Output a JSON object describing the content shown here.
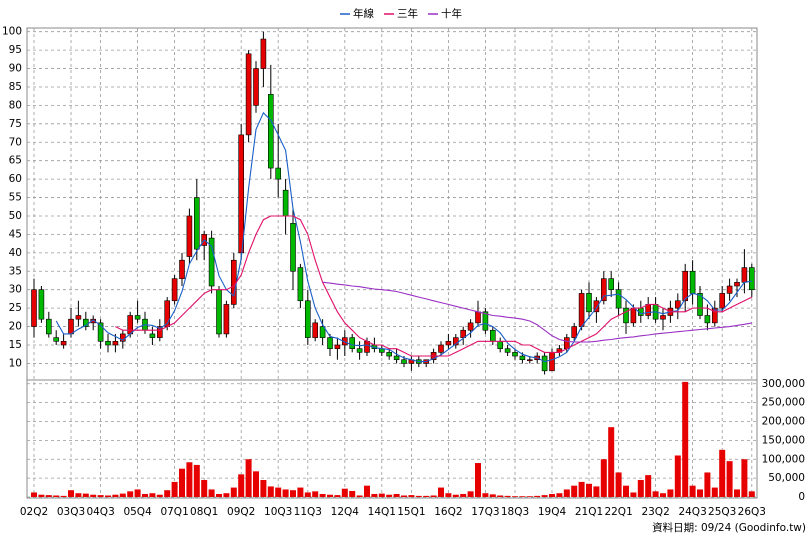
{
  "chart_data": {
    "type": "candlestick",
    "categories": [
      "02Q2",
      null,
      null,
      null,
      null,
      "03Q3",
      null,
      null,
      null,
      "04Q3",
      null,
      null,
      null,
      null,
      "05Q4",
      null,
      null,
      null,
      null,
      "07Q1",
      null,
      null,
      null,
      "08Q1",
      null,
      null,
      null,
      null,
      "09Q2",
      null,
      null,
      null,
      null,
      "10Q3",
      null,
      null,
      null,
      "11Q3",
      null,
      null,
      null,
      null,
      "12Q4",
      null,
      null,
      null,
      null,
      "14Q1",
      null,
      null,
      null,
      "15Q1",
      null,
      null,
      null,
      null,
      "16Q2",
      null,
      null,
      null,
      null,
      "17Q3",
      null,
      null,
      null,
      "18Q3",
      null,
      null,
      null,
      null,
      "19Q4",
      null,
      null,
      null,
      null,
      "21Q1",
      null,
      null,
      null,
      "22Q1",
      null,
      null,
      null,
      null,
      "23Q2",
      null,
      null,
      null,
      null,
      "24Q3",
      null,
      null,
      null,
      "25Q3",
      null,
      null,
      null,
      "26Q3"
    ],
    "open": [
      20,
      30,
      22,
      17,
      15,
      18,
      22,
      22,
      21,
      21,
      16,
      15,
      16,
      18,
      23,
      22,
      18,
      17,
      20,
      27,
      33,
      39,
      55,
      42,
      44,
      30,
      18,
      26,
      40,
      72,
      80,
      90,
      83,
      63,
      57,
      48,
      36,
      27,
      17,
      20,
      17,
      14,
      15,
      17,
      14,
      13,
      15,
      14,
      13,
      12,
      11,
      10,
      11,
      10,
      11,
      13,
      15,
      15,
      17,
      19,
      21,
      24,
      19,
      16,
      14,
      13,
      12,
      11,
      11,
      12,
      8,
      13,
      14,
      17,
      20,
      29,
      24,
      27,
      33,
      30,
      25,
      21,
      25,
      23,
      26,
      22,
      23,
      25,
      27,
      35,
      29,
      23,
      21,
      25,
      29,
      31,
      32,
      36
    ],
    "high": [
      33,
      31,
      24,
      19,
      18,
      25,
      27,
      24,
      23,
      22,
      18,
      18,
      19,
      24,
      27,
      24,
      20,
      22,
      28,
      34,
      40,
      52,
      60,
      46,
      46,
      31,
      27,
      40,
      75,
      95,
      92,
      100,
      91,
      75,
      60,
      52,
      37,
      30,
      22,
      22,
      18,
      17,
      19,
      18,
      16,
      17,
      17,
      15,
      14,
      14,
      12,
      12,
      12,
      11,
      14,
      16,
      18,
      18,
      20,
      22,
      27,
      25,
      20,
      17,
      15,
      14,
      13,
      12,
      13,
      13,
      14,
      15,
      18,
      21,
      30,
      32,
      28,
      35,
      35,
      32,
      27,
      26,
      27,
      28,
      28,
      25,
      27,
      29,
      37,
      38,
      31,
      26,
      27,
      31,
      33,
      33,
      41,
      37
    ],
    "low": [
      17,
      21,
      17,
      15,
      14,
      17,
      20,
      19,
      19,
      14,
      13,
      13,
      14,
      17,
      21,
      18,
      15,
      16,
      19,
      26,
      31,
      37,
      38,
      38,
      29,
      17,
      17,
      25,
      38,
      70,
      78,
      85,
      60,
      55,
      45,
      30,
      25,
      15,
      16,
      15,
      12,
      11,
      12,
      13,
      11,
      12,
      13,
      12,
      11,
      10,
      9,
      8,
      9,
      9,
      10,
      12,
      14,
      14,
      15,
      17,
      20,
      18,
      15,
      13,
      12,
      11,
      10,
      10,
      10,
      7,
      8,
      12,
      13,
      16,
      19,
      22,
      21,
      26,
      28,
      23,
      18,
      20,
      21,
      22,
      21,
      19,
      21,
      22,
      24,
      26,
      22,
      19,
      20,
      24,
      27,
      28,
      29,
      28
    ],
    "close": [
      30,
      22,
      18,
      16,
      16,
      22,
      23,
      20,
      22,
      16,
      15,
      16,
      18,
      23,
      22,
      19,
      17,
      20,
      27,
      33,
      38,
      50,
      41,
      45,
      31,
      18,
      26,
      38,
      72,
      94,
      90,
      98,
      63,
      60,
      50,
      35,
      27,
      17,
      21,
      17,
      14,
      15,
      17,
      14,
      13,
      16,
      14,
      13,
      12,
      11,
      10,
      11,
      10,
      11,
      13,
      15,
      16,
      17,
      19,
      21,
      24,
      19,
      16,
      14,
      13,
      12,
      11,
      11,
      12,
      8,
      13,
      14,
      17,
      20,
      29,
      24,
      27,
      33,
      30,
      25,
      21,
      25,
      23,
      26,
      22,
      23,
      25,
      27,
      35,
      29,
      23,
      21,
      25,
      29,
      31,
      32,
      36,
      30
    ],
    "up_color": "#e60000",
    "down_color": "#00b800",
    "ylim": [
      5.5,
      101
    ],
    "yticks": [
      10,
      15,
      20,
      25,
      30,
      35,
      40,
      45,
      50,
      55,
      60,
      65,
      70,
      75,
      80,
      85,
      90,
      95,
      100
    ],
    "grid": true,
    "legend_position": "top",
    "series": [
      {
        "name": "年線",
        "color": "#1a5fc8",
        "values": [
          null,
          null,
          null,
          21.5,
          18,
          18,
          19.3,
          20.3,
          21.8,
          20.3,
          18.3,
          17.3,
          16.3,
          18,
          19.8,
          20.5,
          20.3,
          19.5,
          20.8,
          24.3,
          29.5,
          37,
          40.5,
          43.5,
          41.8,
          33.8,
          30,
          28.3,
          38.5,
          57.5,
          73.5,
          78,
          76,
          72,
          67.8,
          52,
          43,
          32.3,
          25,
          20.5,
          17.3,
          16.8,
          15.8,
          15,
          14.8,
          15,
          14.3,
          14,
          13.8,
          12.5,
          11.5,
          11,
          10.5,
          10.5,
          11.3,
          12.3,
          13.8,
          15.3,
          16.8,
          18.3,
          20.3,
          20.8,
          20,
          18.3,
          15.5,
          13.8,
          12.5,
          11.8,
          11.5,
          10.5,
          11,
          11.8,
          13,
          16,
          20,
          22.5,
          25,
          28.3,
          28.5,
          28.8,
          27.3,
          25.3,
          23.5,
          23.8,
          24,
          23.5,
          24,
          24.3,
          27.5,
          29,
          28.5,
          27,
          24.5,
          24.5,
          26.5,
          29.3,
          32,
          32.3
        ]
      },
      {
        "name": "三年",
        "color": "#e0106a",
        "values": [
          null,
          null,
          null,
          null,
          null,
          null,
          null,
          null,
          null,
          null,
          null,
          20,
          19,
          19,
          19,
          19,
          19,
          19,
          20,
          21,
          23,
          25,
          27,
          29,
          30,
          30,
          30,
          31,
          34,
          40,
          45,
          49,
          50,
          50,
          50,
          50,
          49,
          45,
          38,
          32,
          28,
          24,
          21,
          19,
          17,
          16,
          15,
          15,
          14,
          14,
          13,
          12,
          12,
          12,
          12,
          12,
          12,
          13,
          14,
          15,
          16,
          16,
          16,
          16,
          16,
          16,
          15,
          15,
          14,
          13,
          13,
          13,
          14,
          15,
          16,
          17,
          18,
          20,
          22,
          23,
          24,
          25,
          25,
          26,
          26,
          25,
          24,
          24,
          24,
          25,
          25,
          25,
          24,
          24,
          25,
          26,
          27,
          28
        ]
      },
      {
        "name": "十年",
        "color": "#9a2fc4",
        "values": [
          null,
          null,
          null,
          null,
          null,
          null,
          null,
          null,
          null,
          null,
          null,
          null,
          null,
          null,
          null,
          null,
          null,
          null,
          null,
          null,
          null,
          null,
          null,
          null,
          null,
          null,
          null,
          null,
          null,
          null,
          null,
          null,
          null,
          null,
          null,
          null,
          null,
          null,
          null,
          32,
          31.8,
          31.5,
          31.3,
          31,
          30.8,
          30.5,
          30.2,
          30,
          29.8,
          29.5,
          29,
          28.5,
          28,
          27.5,
          27,
          26.5,
          26,
          25.5,
          25,
          24.5,
          24,
          23.5,
          23,
          22.8,
          22.5,
          22.3,
          22,
          21.5,
          20.5,
          19,
          17.5,
          16.5,
          16,
          15.8,
          15.8,
          15.8,
          16,
          16.3,
          16.5,
          16.8,
          17,
          17.2,
          17.5,
          17.7,
          18,
          18.2,
          18.4,
          18.6,
          18.8,
          19,
          19.2,
          19.4,
          19.6,
          19.8,
          20,
          20.3,
          20.6,
          21
        ]
      }
    ],
    "volume": {
      "color": "#e60000",
      "ylim": [
        0,
        310000
      ],
      "yticks": [
        0,
        {
          "value": 50000,
          "label": "50,000"
        },
        {
          "value": 100000,
          "label": "100,000"
        },
        {
          "value": 150000,
          "label": "150,000"
        },
        {
          "value": 200000,
          "label": "200,000"
        },
        {
          "value": 250000,
          "label": "250,000"
        },
        {
          "value": 300000,
          "label": "300,000"
        }
      ],
      "values": [
        12000,
        6000,
        5000,
        4000,
        3000,
        18000,
        10000,
        9000,
        6000,
        5000,
        4000,
        6000,
        9000,
        15000,
        20000,
        8000,
        10000,
        6000,
        18000,
        40000,
        75000,
        92000,
        85000,
        45000,
        20000,
        8000,
        10000,
        25000,
        60000,
        100000,
        68000,
        45000,
        28000,
        25000,
        20000,
        18000,
        25000,
        12000,
        15000,
        8000,
        6000,
        5000,
        22000,
        16000,
        4000,
        30000,
        8000,
        9000,
        6000,
        8000,
        4000,
        5000,
        3000,
        3000,
        4000,
        25000,
        10000,
        6000,
        8000,
        15000,
        90000,
        10000,
        7000,
        4000,
        3000,
        2000,
        2000,
        2000,
        3000,
        5000,
        8000,
        10000,
        20000,
        30000,
        40000,
        35000,
        28000,
        100000,
        185000,
        65000,
        30000,
        12000,
        45000,
        58000,
        15000,
        10000,
        20000,
        110000,
        305000,
        30000,
        20000,
        65000,
        25000,
        125000,
        95000,
        20000,
        100000,
        15000
      ]
    },
    "source": "資料日期: 09/24 (Goodinfo.tw)"
  }
}
